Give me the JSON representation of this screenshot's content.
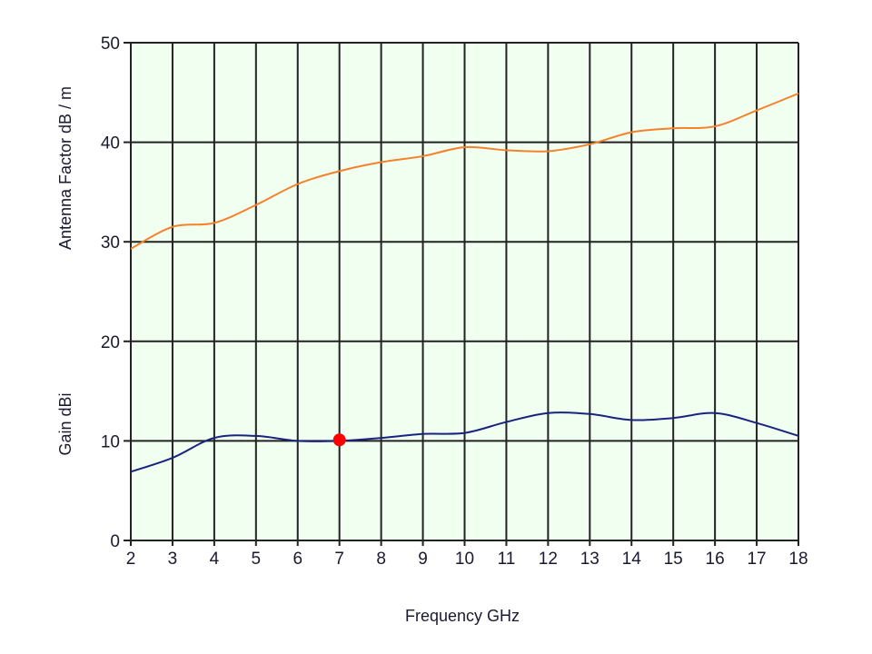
{
  "chart_data": {
    "type": "line",
    "title": "",
    "xlabel": "Frequency GHz",
    "ylabels": [
      "Antenna Factor   dB / m",
      "Gain dBi"
    ],
    "x": [
      2,
      3,
      4,
      5,
      6,
      7,
      8,
      9,
      10,
      11,
      12,
      13,
      14,
      15,
      16,
      17,
      18
    ],
    "xlim": [
      2,
      18
    ],
    "ylim": [
      0,
      50
    ],
    "x_ticks": [
      "2",
      "3",
      "4",
      "5",
      "6",
      "7",
      "8",
      "9",
      "10",
      "11",
      "12",
      "13",
      "14",
      "15",
      "16",
      "17",
      "18"
    ],
    "y_ticks": [
      "0",
      "10",
      "20",
      "30",
      "40",
      "50"
    ],
    "grid": true,
    "background": "#f0fff0",
    "series": [
      {
        "name": "Antenna Factor",
        "unit": "dB / m",
        "color": "#f5822a",
        "values": [
          29.3,
          31.5,
          31.9,
          33.7,
          35.8,
          37.1,
          38.0,
          38.6,
          39.5,
          39.2,
          39.1,
          39.8,
          41.0,
          41.4,
          41.6,
          43.2,
          44.9
        ]
      },
      {
        "name": "Gain",
        "unit": "dBi",
        "color": "#1a237e",
        "values": [
          6.9,
          8.3,
          10.3,
          10.5,
          10.0,
          10.0,
          10.3,
          10.7,
          10.8,
          11.9,
          12.8,
          12.7,
          12.1,
          12.3,
          12.8,
          11.8,
          10.5
        ]
      }
    ],
    "annotations": [
      {
        "type": "marker",
        "x": 7,
        "y": 10.1,
        "color": "#ff0000",
        "series": "Gain"
      }
    ]
  }
}
